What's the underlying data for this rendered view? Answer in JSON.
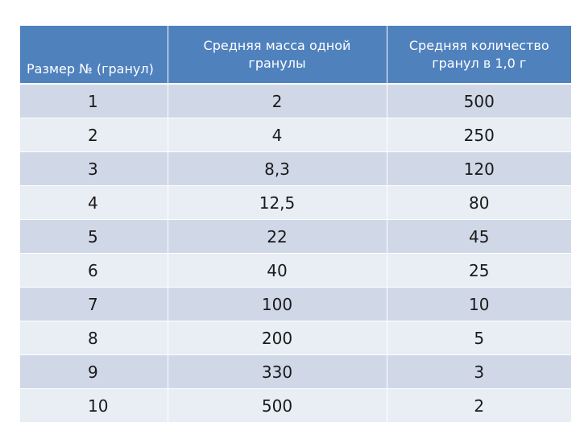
{
  "table": {
    "headers": {
      "size": "Размер № (гранул)",
      "mass_line1": "Средняя масса одной",
      "mass_line2": "гранулы",
      "count_line1": "Средняя количество",
      "count_line2": "гранул в 1,0 г"
    },
    "rows": [
      {
        "size": "1",
        "mass": "2",
        "count": "500"
      },
      {
        "size": "2",
        "mass": "4",
        "count": "250"
      },
      {
        "size": "3",
        "mass": "8,3",
        "count": "120"
      },
      {
        "size": "4",
        "mass": "12,5",
        "count": "80"
      },
      {
        "size": "5",
        "mass": "22",
        "count": "45"
      },
      {
        "size": "6",
        "mass": "40",
        "count": "25"
      },
      {
        "size": "7",
        "mass": "100",
        "count": "10"
      },
      {
        "size": "8",
        "mass": "200",
        "count": "5"
      },
      {
        "size": "9",
        "mass": "330",
        "count": "3"
      },
      {
        "size": "10",
        "mass": "500",
        "count": "2"
      }
    ]
  },
  "colors": {
    "header_bg": "#4f81bd",
    "row_odd_bg": "#d0d8e8",
    "row_even_bg": "#e9edf4"
  }
}
